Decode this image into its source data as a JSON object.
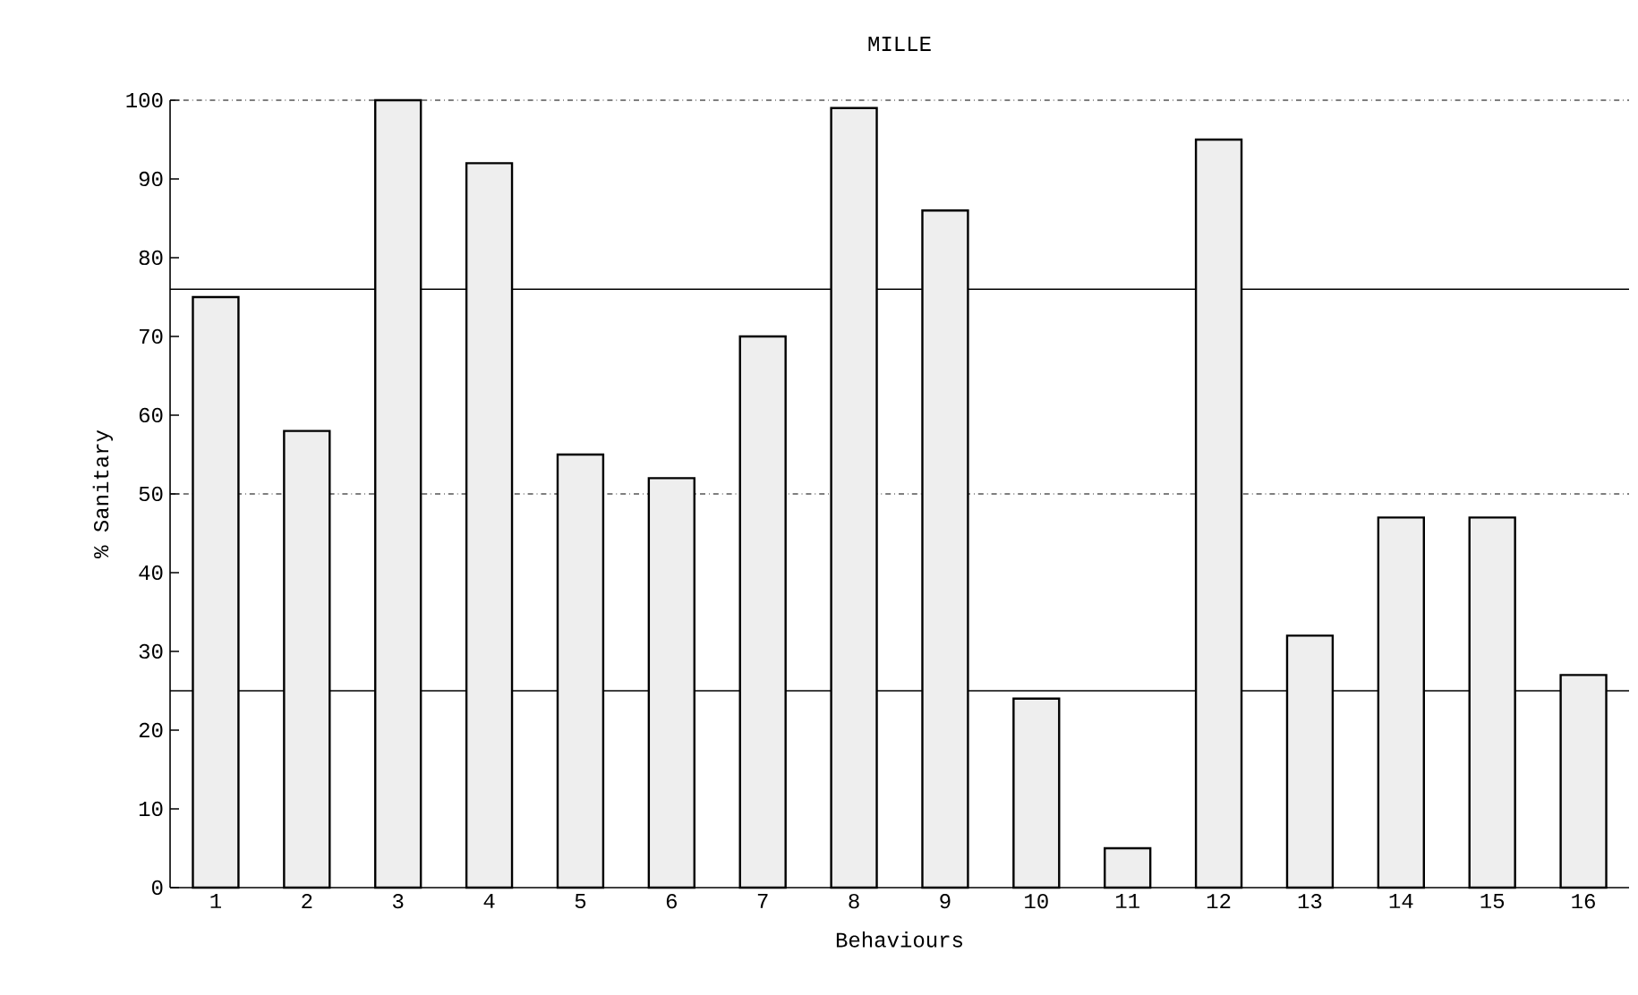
{
  "chart_data": {
    "type": "bar",
    "title": "MILLE",
    "xlabel": "Behaviours",
    "ylabel": "% Sanitary",
    "categories": [
      "1",
      "2",
      "3",
      "4",
      "5",
      "6",
      "7",
      "8",
      "9",
      "10",
      "11",
      "12",
      "13",
      "14",
      "15",
      "16"
    ],
    "values": [
      75,
      58,
      100,
      92,
      55,
      52,
      70,
      99,
      86,
      24,
      5,
      95,
      32,
      47,
      47,
      27
    ],
    "color": "#eeeeee",
    "ylim": [
      0,
      100
    ],
    "yticks": [
      0,
      10,
      20,
      30,
      40,
      50,
      60,
      70,
      80,
      90,
      100
    ],
    "ref_lines": [
      {
        "axis": "y",
        "value": 25,
        "line_style": "solid"
      },
      {
        "axis": "y",
        "value": 50,
        "line_style": "dashed"
      },
      {
        "axis": "y",
        "value": 76,
        "line_style": "solid"
      }
    ]
  }
}
